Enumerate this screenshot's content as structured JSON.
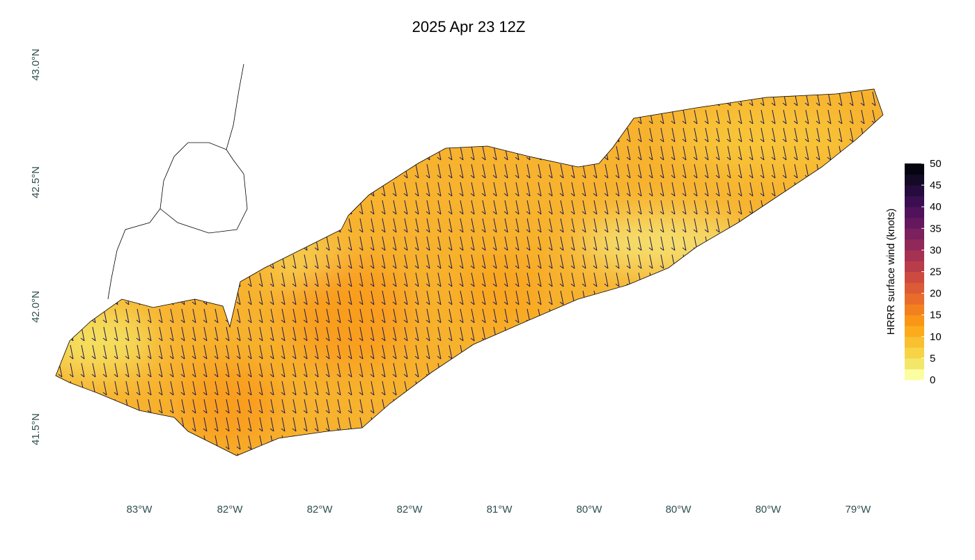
{
  "title": "2025 Apr 23 12Z",
  "latitude_labels": [
    "43.0°N",
    "42.5°N",
    "42.0°N",
    "41.5°N"
  ],
  "longitude_labels": [
    "83°W",
    "82°W",
    "82°W",
    "82°W",
    "81°W",
    "80°W",
    "80°W",
    "80°W",
    "79°W"
  ],
  "colorbar": {
    "label": "HRRR surface wind (knots)",
    "limits": [
      0,
      50
    ],
    "ticks": [
      0,
      5,
      10,
      15,
      20,
      25,
      30,
      35,
      40,
      45,
      50
    ],
    "colors": [
      "#fcfda0",
      "#f3e76a",
      "#f6d446",
      "#f9c031",
      "#fcab1c",
      "#fa9616",
      "#f3801e",
      "#e96c2a",
      "#dc5a35",
      "#cc4a40",
      "#b93c4a",
      "#a53153",
      "#902959",
      "#7b215d",
      "#66185e",
      "#51125c",
      "#3b0e52",
      "#260c3e",
      "#150a26",
      "#050410"
    ]
  }
}
